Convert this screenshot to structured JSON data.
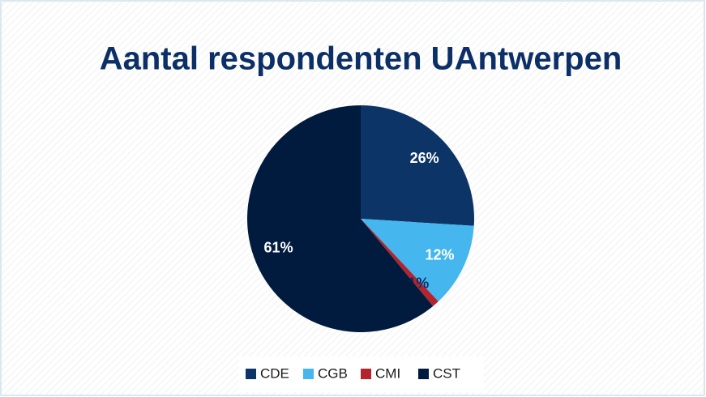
{
  "chart_data": {
    "type": "pie",
    "title": "Aantal respondenten UAntwerpen",
    "categories": [
      "CDE",
      "CGB",
      "CMI",
      "CST"
    ],
    "values": [
      26,
      12,
      1,
      61
    ],
    "value_labels": [
      "26%",
      "12%",
      "1%",
      "61%"
    ],
    "colors": [
      "#0c3466",
      "#45b7ee",
      "#b3242e",
      "#001b3d"
    ],
    "legend": "bottom"
  }
}
